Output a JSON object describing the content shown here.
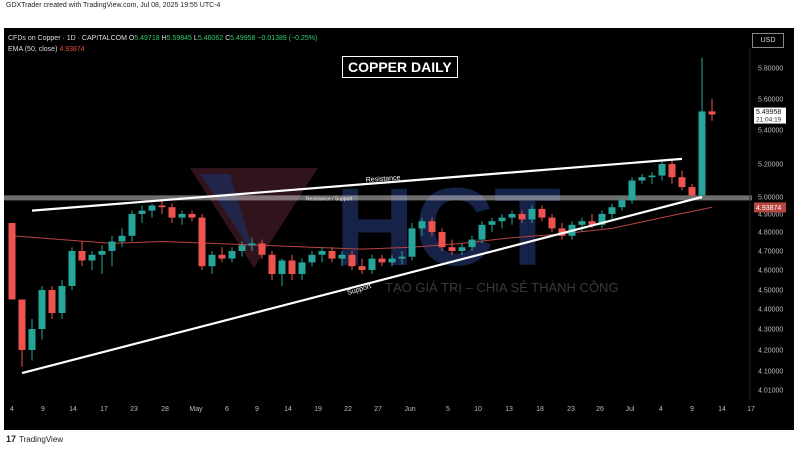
{
  "header": {
    "text": "GDXTrader created with TradingView.com, Jul 08, 2025 19:55 UTC-4"
  },
  "legend": {
    "symbol": "CFDs on Copper · 1D · CAPITALCOM",
    "o_label": "O",
    "o": "5.49718",
    "h_label": "H",
    "h": "5.59845",
    "l_label": "L",
    "l": "5.46062",
    "c_label": "C",
    "c": "5.49958",
    "change": "−0.01389 (−0.25%)",
    "ema_label": "EMA (50, close)",
    "ema": "4.93874"
  },
  "currency": "USD",
  "title": "COPPER DAILY",
  "footer": {
    "logo": "17",
    "text": "TradingView"
  },
  "watermark": {
    "logo_text": "HCT",
    "tagline": "TẠO GIÁ TRỊ – CHIA SẺ THÀNH CÔNG"
  },
  "colors": {
    "up": "#26a69a",
    "down": "#ef5350",
    "ema": "#b8443f",
    "trend": "#ffffff",
    "zone": "#c8c8c8"
  },
  "chart_data": {
    "type": "candlestick",
    "title": "COPPER DAILY",
    "ylim": [
      4.0,
      5.9
    ],
    "y_ticks": [
      "5.80000",
      "5.60000",
      "5.40000",
      "5.20000",
      "5.00000",
      "4.90000",
      "4.80000",
      "4.70000",
      "4.60000",
      "4.50000",
      "4.40000",
      "4.30000",
      "4.20000",
      "4.10000",
      "4.01000"
    ],
    "y_tick_values": [
      5.8,
      5.6,
      5.4,
      5.2,
      5.0,
      4.9,
      4.8,
      4.7,
      4.6,
      4.5,
      4.4,
      4.3,
      4.2,
      4.1,
      4.01
    ],
    "x_ticks": [
      "4",
      "9",
      "14",
      "17",
      "23",
      "28",
      "May",
      "6",
      "9",
      "14",
      "19",
      "22",
      "27",
      "Jun",
      "5",
      "10",
      "13",
      "18",
      "23",
      "26",
      "Jul",
      "4",
      "9",
      "14",
      "17"
    ],
    "price_label": {
      "price": "5.49958",
      "countdown": "21:04:19",
      "value": 5.49958
    },
    "ema_label": {
      "text": "4.93874",
      "value": 4.93874
    },
    "annotations": {
      "resistance": "Resistance",
      "support": "Support",
      "zone": "Resistance / Support"
    },
    "resistance_line": [
      [
        2,
        4.92
      ],
      [
        67,
        5.23
      ]
    ],
    "support_line": [
      [
        1,
        4.09
      ],
      [
        69,
        5.0
      ]
    ],
    "zone": [
      4.98,
      5.01
    ],
    "candles": [
      [
        0,
        4.85,
        4.85,
        4.45,
        4.45
      ],
      [
        1,
        4.45,
        4.45,
        4.12,
        4.2
      ],
      [
        2,
        4.2,
        4.35,
        4.15,
        4.3
      ],
      [
        3,
        4.3,
        4.52,
        4.25,
        4.5
      ],
      [
        4,
        4.5,
        4.52,
        4.35,
        4.38
      ],
      [
        5,
        4.38,
        4.55,
        4.35,
        4.52
      ],
      [
        6,
        4.52,
        4.72,
        4.5,
        4.7
      ],
      [
        7,
        4.7,
        4.75,
        4.62,
        4.65
      ],
      [
        8,
        4.65,
        4.7,
        4.6,
        4.68
      ],
      [
        9,
        4.68,
        4.73,
        4.58,
        4.7
      ],
      [
        10,
        4.7,
        4.78,
        4.62,
        4.75
      ],
      [
        11,
        4.75,
        4.82,
        4.72,
        4.78
      ],
      [
        12,
        4.78,
        4.92,
        4.75,
        4.9
      ],
      [
        13,
        4.9,
        4.95,
        4.85,
        4.92
      ],
      [
        14,
        4.92,
        4.96,
        4.88,
        4.95
      ],
      [
        15,
        4.95,
        4.98,
        4.9,
        4.94
      ],
      [
        16,
        4.94,
        4.96,
        4.85,
        4.88
      ],
      [
        17,
        4.88,
        4.92,
        4.84,
        4.9
      ],
      [
        18,
        4.9,
        4.92,
        4.86,
        4.88
      ],
      [
        19,
        4.88,
        4.9,
        4.6,
        4.62
      ],
      [
        20,
        4.62,
        4.7,
        4.58,
        4.68
      ],
      [
        21,
        4.68,
        4.72,
        4.64,
        4.66
      ],
      [
        22,
        4.66,
        4.72,
        4.64,
        4.7
      ],
      [
        23,
        4.7,
        4.75,
        4.67,
        4.73
      ],
      [
        24,
        4.73,
        4.77,
        4.7,
        4.74
      ],
      [
        25,
        4.74,
        4.76,
        4.66,
        4.68
      ],
      [
        26,
        4.68,
        4.7,
        4.55,
        4.58
      ],
      [
        27,
        4.58,
        4.66,
        4.52,
        4.65
      ],
      [
        28,
        4.65,
        4.68,
        4.55,
        4.58
      ],
      [
        29,
        4.58,
        4.66,
        4.55,
        4.64
      ],
      [
        30,
        4.64,
        4.7,
        4.62,
        4.68
      ],
      [
        31,
        4.68,
        4.72,
        4.64,
        4.7
      ],
      [
        32,
        4.7,
        4.72,
        4.64,
        4.66
      ],
      [
        33,
        4.66,
        4.7,
        4.62,
        4.68
      ],
      [
        34,
        4.68,
        4.7,
        4.6,
        4.62
      ],
      [
        35,
        4.62,
        4.66,
        4.58,
        4.6
      ],
      [
        36,
        4.6,
        4.68,
        4.58,
        4.66
      ],
      [
        37,
        4.66,
        4.68,
        4.62,
        4.64
      ],
      [
        38,
        4.64,
        4.68,
        4.62,
        4.66
      ],
      [
        39,
        4.66,
        4.7,
        4.63,
        4.67
      ],
      [
        40,
        4.67,
        4.85,
        4.65,
        4.82
      ],
      [
        41,
        4.82,
        4.88,
        4.78,
        4.86
      ],
      [
        42,
        4.86,
        4.88,
        4.78,
        4.8
      ],
      [
        43,
        4.8,
        4.82,
        4.7,
        4.72
      ],
      [
        44,
        4.72,
        4.76,
        4.68,
        4.7
      ],
      [
        45,
        4.7,
        4.74,
        4.68,
        4.72
      ],
      [
        46,
        4.72,
        4.78,
        4.7,
        4.76
      ],
      [
        47,
        4.76,
        4.86,
        4.74,
        4.84
      ],
      [
        48,
        4.84,
        4.88,
        4.8,
        4.86
      ],
      [
        49,
        4.86,
        4.9,
        4.82,
        4.88
      ],
      [
        50,
        4.88,
        4.92,
        4.84,
        4.9
      ],
      [
        51,
        4.9,
        4.92,
        4.85,
        4.87
      ],
      [
        52,
        4.87,
        4.95,
        4.85,
        4.93
      ],
      [
        53,
        4.93,
        4.95,
        4.86,
        4.88
      ],
      [
        54,
        4.88,
        4.9,
        4.8,
        4.82
      ],
      [
        55,
        4.82,
        4.85,
        4.76,
        4.78
      ],
      [
        56,
        4.78,
        4.86,
        4.76,
        4.84
      ],
      [
        57,
        4.84,
        4.88,
        4.8,
        4.86
      ],
      [
        58,
        4.86,
        4.9,
        4.82,
        4.84
      ],
      [
        59,
        4.84,
        4.92,
        4.82,
        4.9
      ],
      [
        60,
        4.9,
        4.96,
        4.86,
        4.94
      ],
      [
        61,
        4.94,
        5.0,
        4.92,
        4.98
      ],
      [
        62,
        4.98,
        5.12,
        4.96,
        5.1
      ],
      [
        63,
        5.1,
        5.14,
        5.08,
        5.12
      ],
      [
        64,
        5.12,
        5.15,
        5.08,
        5.13
      ],
      [
        65,
        5.13,
        5.22,
        5.1,
        5.2
      ],
      [
        66,
        5.2,
        5.22,
        5.08,
        5.12
      ],
      [
        67,
        5.12,
        5.16,
        5.04,
        5.06
      ],
      [
        68,
        5.06,
        5.08,
        5.0,
        5.01
      ],
      [
        69,
        5.01,
        5.88,
        5.0,
        5.52
      ],
      [
        70,
        5.52,
        5.6,
        5.46,
        5.5
      ]
    ],
    "ema": [
      [
        0,
        4.78
      ],
      [
        5,
        4.76
      ],
      [
        10,
        4.74
      ],
      [
        15,
        4.75
      ],
      [
        20,
        4.74
      ],
      [
        25,
        4.73
      ],
      [
        30,
        4.72
      ],
      [
        35,
        4.71
      ],
      [
        40,
        4.72
      ],
      [
        45,
        4.74
      ],
      [
        50,
        4.77
      ],
      [
        55,
        4.79
      ],
      [
        60,
        4.82
      ],
      [
        65,
        4.88
      ],
      [
        70,
        4.94
      ]
    ]
  }
}
